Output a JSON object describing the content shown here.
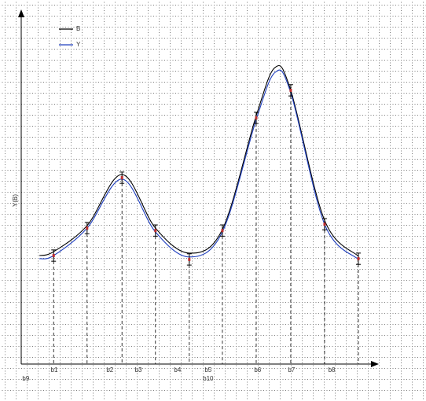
{
  "chart_data": {
    "type": "line",
    "ylabel": "Y(B)",
    "xlim": [
      0,
      100
    ],
    "ylim": [
      0,
      100
    ],
    "x_labels": [
      {
        "text": "b1",
        "x": 9.3
      },
      {
        "text": "b2",
        "x": 24.9
      },
      {
        "text": "b3",
        "x": 32.9
      },
      {
        "text": "b4",
        "x": 43.9
      },
      {
        "text": "b5",
        "x": 52.5
      },
      {
        "text": "b6",
        "x": 66.4
      },
      {
        "text": "b7",
        "x": 75.9
      },
      {
        "text": "b8",
        "x": 87.2
      }
    ],
    "lower_labels": [
      {
        "text": "b9",
        "x": 1.3
      },
      {
        "text": "b10",
        "x": 52.5
      }
    ],
    "series": [
      {
        "name": "B",
        "color": "#000000",
        "x": [
          5.1,
          9.1,
          18.5,
          28.3,
          37.7,
          47.2,
          56.5,
          66.0,
          71.3,
          75.7,
          85.2,
          94.7
        ],
        "values": [
          30.8,
          31.9,
          39.3,
          53.8,
          38.6,
          31.5,
          38.2,
          70.5,
          84.2,
          77.7,
          40.8,
          30.6
        ]
      },
      {
        "name": "Y",
        "color": "#1f3fbf",
        "x": [
          5.1,
          9.1,
          18.5,
          28.3,
          37.7,
          47.2,
          56.5,
          66.0,
          71.3,
          75.7,
          85.2,
          94.7
        ],
        "values": [
          29.9,
          30.8,
          38.6,
          52.5,
          37.5,
          30.4,
          37.5,
          69.4,
          82.8,
          77.0,
          39.7,
          29.7
        ]
      }
    ],
    "points": {
      "color": "#c03030",
      "x": [
        9.1,
        18.5,
        28.3,
        37.7,
        47.2,
        56.5,
        66.0,
        75.7,
        85.2,
        94.7
      ],
      "values": [
        30.8,
        38.6,
        52.9,
        37.9,
        29.7,
        37.9,
        69.9,
        77.7,
        39.7,
        29.9
      ],
      "errors": [
        1.6,
        1.6,
        1.6,
        1.6,
        1.6,
        1.6,
        1.6,
        1.6,
        1.6,
        1.6
      ]
    }
  }
}
